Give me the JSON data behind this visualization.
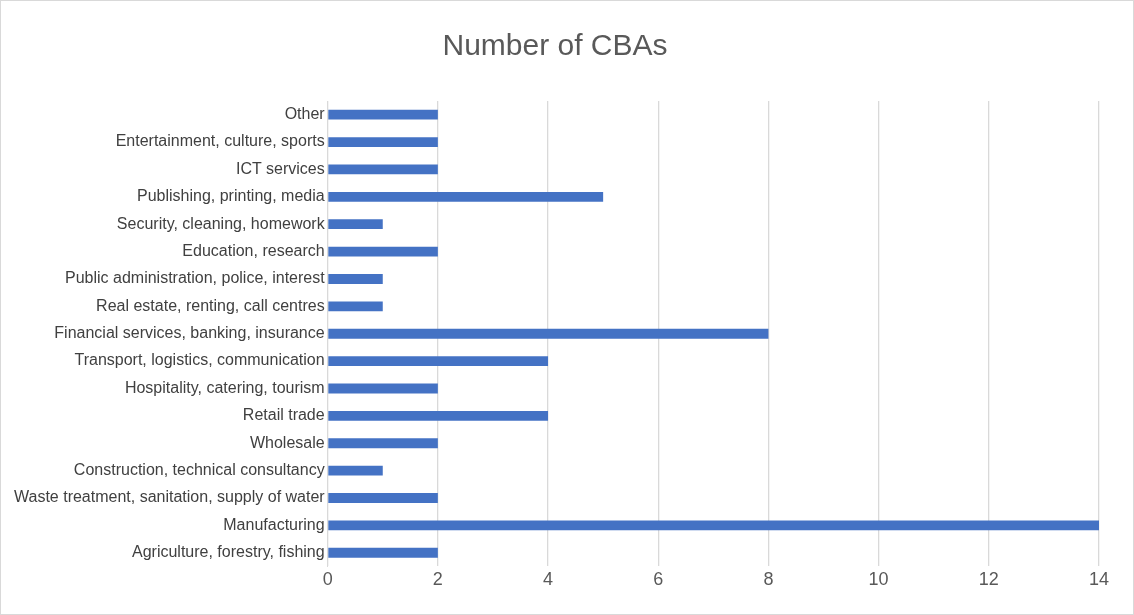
{
  "chart_data": {
    "type": "bar",
    "orientation": "horizontal",
    "title": "Number of CBAs",
    "categories": [
      "Other",
      "Entertainment, culture, sports",
      "ICT services",
      "Publishing, printing, media",
      "Security, cleaning, homework",
      "Education, research",
      "Public administration, police, interest",
      "Real estate, renting, call centres",
      "Financial services, banking, insurance",
      "Transport, logistics, communication",
      "Hospitality, catering, tourism",
      "Retail trade",
      "Wholesale",
      "Construction, technical consultancy",
      "Waste treatment, sanitation, supply of water",
      "Manufacturing",
      "Agriculture, forestry, fishing"
    ],
    "values": [
      2,
      2,
      2,
      5,
      1,
      2,
      1,
      1,
      8,
      4,
      2,
      4,
      2,
      1,
      2,
      14,
      2
    ],
    "color": "#4472c4",
    "xlim": [
      0,
      14
    ],
    "xticks": [
      0,
      2,
      4,
      6,
      8,
      10,
      12,
      14
    ],
    "grid": "x"
  }
}
